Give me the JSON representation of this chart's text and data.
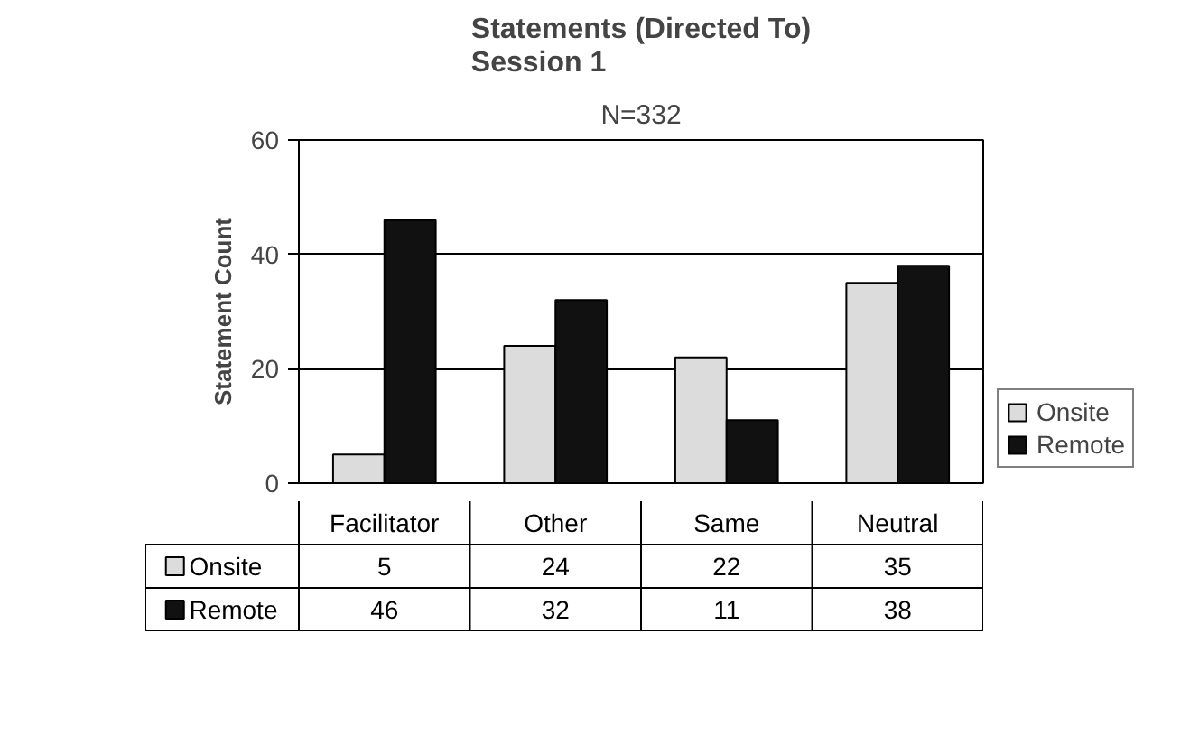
{
  "chart_data": {
    "type": "bar",
    "title": "Statements (Directed To)\nSession 1",
    "subtitle": "N=332",
    "ylabel": "Statement Count",
    "categories": [
      "Facilitator",
      "Other",
      "Same",
      "Neutral"
    ],
    "series": [
      {
        "name": "Onsite",
        "color": "#dcdcdc",
        "values": [
          5,
          24,
          22,
          35
        ]
      },
      {
        "name": "Remote",
        "color": "#111111",
        "values": [
          46,
          32,
          11,
          38
        ]
      }
    ],
    "ylim": [
      0,
      60
    ],
    "yticks": [
      0,
      20,
      40,
      60
    ],
    "grid": "y",
    "legend": "right",
    "data_labels": true
  }
}
